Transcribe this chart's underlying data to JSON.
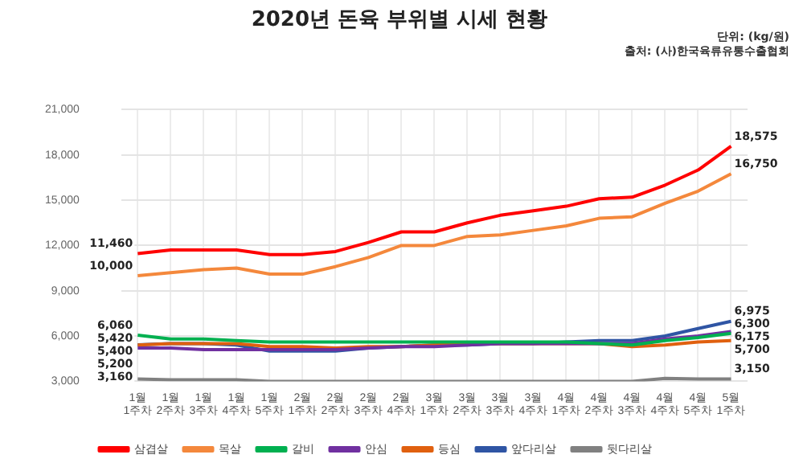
{
  "chart_data": {
    "type": "line",
    "title": "2020년 돈육 부위별 시세 현황",
    "annotations": [
      "단위: (kg/원)",
      "출처: (사)한국육류유통수출협회"
    ],
    "categories": [
      "1월 1주차",
      "1월 2주차",
      "1월 3주차",
      "1월 4주차",
      "1월 5주차",
      "2월 1주차",
      "2월 2주차",
      "2월 3주차",
      "2월 4주차",
      "3월 1주차",
      "3월 2주차",
      "3월 3주차",
      "3월 4주차",
      "4월 1주차",
      "4월 2주차",
      "4월 3주차",
      "4월 4주차",
      "4월 5주차",
      "5월 1주차"
    ],
    "series": [
      {
        "name": "삼겹살",
        "color": "#ff0000",
        "values": [
          11460,
          11700,
          11700,
          11700,
          11400,
          11400,
          11600,
          12200,
          12900,
          12900,
          13500,
          14000,
          14300,
          14600,
          15100,
          15200,
          16000,
          17000,
          18575
        ],
        "value_labels": [
          "11,460",
          null,
          null,
          null,
          null,
          null,
          null,
          null,
          null,
          null,
          null,
          null,
          null,
          null,
          null,
          null,
          null,
          null,
          "18,575"
        ]
      },
      {
        "name": "목살",
        "color": "#f4883c",
        "values": [
          10000,
          10200,
          10400,
          10500,
          10100,
          10100,
          10600,
          11200,
          12000,
          12000,
          12600,
          12700,
          13000,
          13300,
          13800,
          13900,
          14800,
          15600,
          16750
        ],
        "value_labels": [
          "10,000",
          null,
          null,
          null,
          null,
          null,
          null,
          null,
          null,
          null,
          null,
          null,
          null,
          null,
          null,
          null,
          null,
          null,
          "16,750"
        ]
      },
      {
        "name": "갈비",
        "color": "#00b050",
        "values": [
          6060,
          5800,
          5800,
          5700,
          5600,
          5600,
          5600,
          5600,
          5600,
          5600,
          5600,
          5600,
          5600,
          5600,
          5500,
          5400,
          5700,
          5900,
          6175
        ],
        "value_labels": [
          "6,060",
          null,
          null,
          null,
          null,
          null,
          null,
          null,
          null,
          null,
          null,
          null,
          null,
          null,
          null,
          null,
          null,
          null,
          "6,175"
        ]
      },
      {
        "name": "안심",
        "color": "#7030a0",
        "values": [
          5200,
          5200,
          5100,
          5100,
          5100,
          5100,
          5100,
          5200,
          5300,
          5300,
          5400,
          5500,
          5500,
          5500,
          5500,
          5500,
          5800,
          6000,
          6300
        ],
        "value_labels": [
          "5,200",
          null,
          null,
          null,
          null,
          null,
          null,
          null,
          null,
          null,
          null,
          null,
          null,
          null,
          null,
          null,
          null,
          null,
          "6,300"
        ]
      },
      {
        "name": "등심",
        "color": "#e0600f",
        "values": [
          5400,
          5500,
          5500,
          5500,
          5300,
          5300,
          5200,
          5300,
          5300,
          5400,
          5500,
          5500,
          5500,
          5500,
          5500,
          5300,
          5400,
          5600,
          5700
        ],
        "value_labels": [
          "5,400",
          null,
          null,
          null,
          null,
          null,
          null,
          null,
          null,
          null,
          null,
          null,
          null,
          null,
          null,
          null,
          null,
          null,
          "5,700"
        ]
      },
      {
        "name": "앞다리살",
        "color": "#2f55a4",
        "values": [
          5420,
          5500,
          5500,
          5400,
          5000,
          5000,
          5000,
          5200,
          5300,
          5400,
          5400,
          5500,
          5500,
          5600,
          5700,
          5700,
          6000,
          6500,
          6975
        ],
        "value_labels": [
          "5,420",
          null,
          null,
          null,
          null,
          null,
          null,
          null,
          null,
          null,
          null,
          null,
          null,
          null,
          null,
          null,
          null,
          null,
          "6,975"
        ]
      },
      {
        "name": "뒷다리살",
        "color": "#808080",
        "values": [
          3160,
          3100,
          3100,
          3100,
          3000,
          3000,
          3000,
          3000,
          3000,
          3000,
          3000,
          3000,
          3000,
          3000,
          3000,
          3000,
          3200,
          3150,
          3150
        ],
        "value_labels": [
          "3,160",
          null,
          null,
          null,
          null,
          null,
          null,
          null,
          null,
          null,
          null,
          null,
          null,
          null,
          null,
          null,
          null,
          null,
          "3,150"
        ]
      }
    ],
    "ylim": [
      3000,
      21000
    ],
    "yticks": [
      {
        "value": 3000,
        "label": "3,000"
      },
      {
        "value": 6000,
        "label": "6,000"
      },
      {
        "value": 9000,
        "label": "9,000"
      },
      {
        "value": 12000,
        "label": "12,000"
      },
      {
        "value": 15000,
        "label": "15,000"
      },
      {
        "value": 18000,
        "label": "18,000"
      },
      {
        "value": 21000,
        "label": "21,000"
      }
    ],
    "grid": true,
    "legend": "bottom",
    "marker": "none",
    "line_style": "solid"
  }
}
